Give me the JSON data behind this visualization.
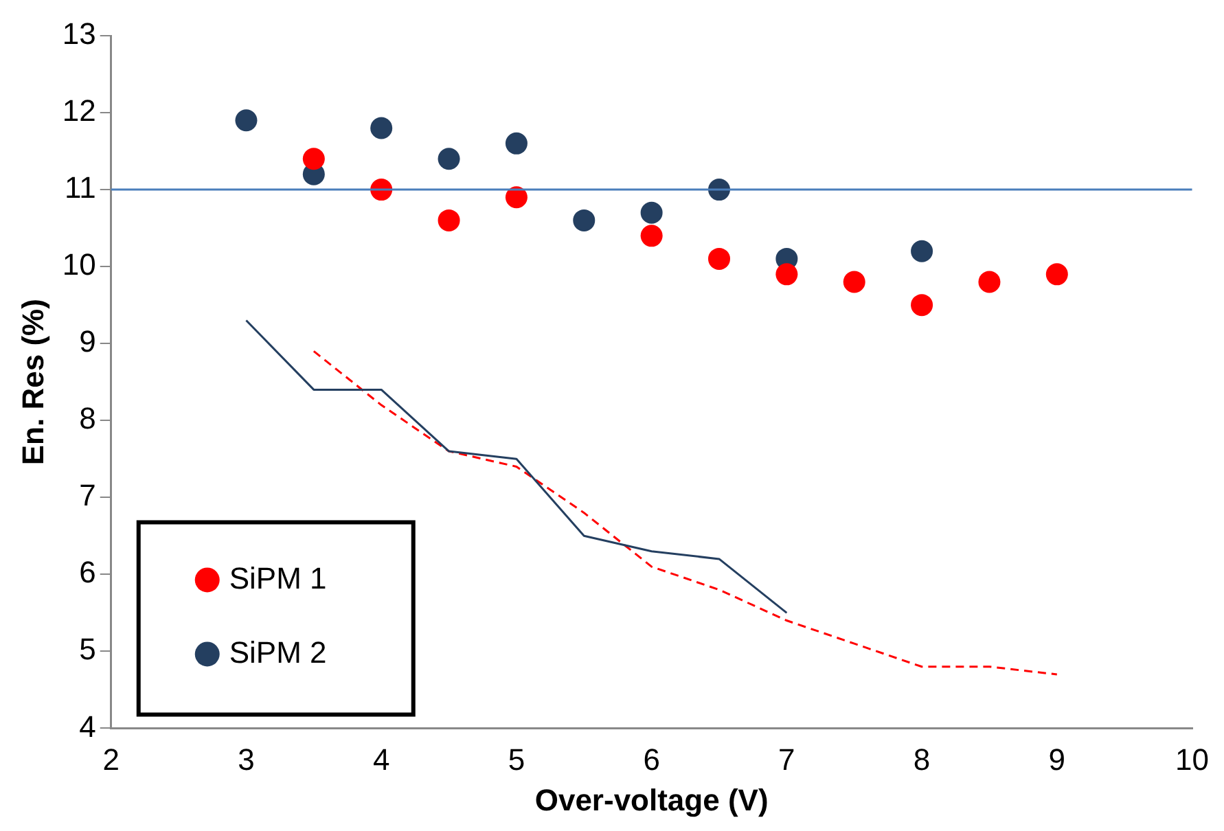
{
  "chart_data": {
    "type": "scatter",
    "xlabel": "Over-voltage (V)",
    "ylabel": "En. Res (%)",
    "xlim": [
      2,
      10
    ],
    "xticks": [
      2,
      3,
      4,
      5,
      6,
      7,
      8,
      9,
      10
    ],
    "ylim": [
      4,
      13
    ],
    "yticks": [
      4,
      5,
      6,
      7,
      8,
      9,
      10,
      11,
      12,
      13
    ],
    "grid": false,
    "legend": "bottom left",
    "marker": "circle",
    "series": [
      {
        "name": "SiPM 1",
        "color": "#ff0000",
        "x": [
          3.5,
          4,
          4.5,
          5,
          5.5,
          6,
          6.5,
          7,
          7.5,
          8,
          8.5,
          9
        ],
        "values": [
          11.4,
          11.0,
          10.6,
          10.9,
          null,
          10.4,
          10.1,
          9.9,
          9.8,
          9.5,
          9.8,
          9.9
        ]
      },
      {
        "name": "SiPM 2",
        "color": "#243f60",
        "x": [
          3,
          3.5,
          4,
          4.5,
          5,
          5.5,
          6,
          6.5,
          7,
          8
        ],
        "values": [
          11.9,
          11.2,
          11.8,
          11.4,
          11.6,
          10.6,
          10.7,
          11.0,
          10.1,
          10.2
        ]
      },
      {
        "type": "line",
        "color": "#243f60",
        "line_style": "solid",
        "marker": "none",
        "x": [
          3,
          3.5,
          4,
          4.5,
          5,
          5.5,
          6,
          6.5,
          7
        ],
        "values": [
          9.3,
          8.4,
          8.4,
          7.6,
          7.5,
          6.5,
          6.3,
          6.2,
          5.5
        ]
      },
      {
        "type": "line",
        "color": "#ff0000",
        "line_style": "dashed",
        "marker": "none",
        "x": [
          3.5,
          4,
          4.5,
          5,
          5.5,
          6,
          6.5,
          7,
          7.5,
          8,
          8.5,
          9
        ],
        "values": [
          8.9,
          8.2,
          7.6,
          7.4,
          6.8,
          6.1,
          5.8,
          5.4,
          5.1,
          4.8,
          4.8,
          4.7
        ]
      }
    ],
    "ref_lines": [
      {
        "axis": "y",
        "value": 11,
        "color": "#4a7ebb"
      }
    ]
  }
}
